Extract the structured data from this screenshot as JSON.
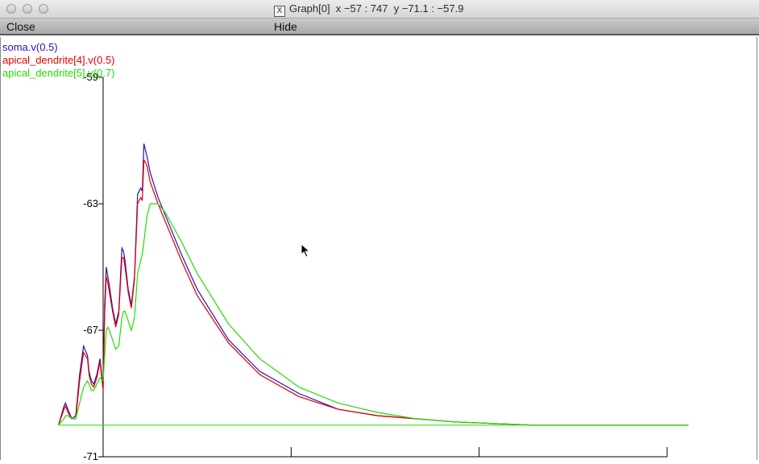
{
  "window": {
    "title": "Graph[0]  x −57 : 747  y −71.1 : −57.9",
    "x_badge": "X"
  },
  "menu": {
    "close_label": "Close",
    "hide_label": "Hide"
  },
  "legend": [
    {
      "label": "soma.v(0.5)",
      "color": "#2a0fb5"
    },
    {
      "label": "apical_dendrite[4].v(0.5)",
      "color": "#e00000"
    },
    {
      "label": "apical_dendrite[5].v(0.7)",
      "color": "#22dd00"
    }
  ],
  "chart_data": {
    "type": "line",
    "title": "",
    "xlabel": "",
    "ylabel": "",
    "xlim": [
      -57,
      747
    ],
    "ylim": [
      -71,
      -59
    ],
    "y_ticks": [
      -59,
      -63,
      -67,
      -71
    ],
    "y_tick_labels": [
      "-59",
      "-63",
      "-67",
      "-71"
    ],
    "x_ticks": [
      0,
      240,
      480,
      720
    ],
    "grid": false,
    "series": [
      {
        "name": "soma.v(0.5)",
        "color": "#2a0fb5",
        "x": [
          -57,
          -50,
          -48,
          -45,
          -40,
          -35,
          -30,
          -25,
          -20,
          -18,
          -15,
          -12,
          -8,
          -4,
          0,
          2,
          4,
          6,
          8,
          12,
          16,
          20,
          24,
          26,
          28,
          32,
          36,
          40,
          44,
          48,
          50,
          52,
          56,
          60,
          70,
          80,
          100,
          120,
          160,
          200,
          250,
          300,
          350,
          400,
          450,
          500,
          550,
          600,
          650,
          700,
          747
        ],
        "y": [
          -70.0,
          -69.4,
          -69.3,
          -69.5,
          -69.8,
          -69.7,
          -68.4,
          -67.5,
          -67.8,
          -68.3,
          -68.6,
          -68.7,
          -68.4,
          -67.9,
          -68.8,
          -66.2,
          -65.0,
          -65.3,
          -65.6,
          -66.3,
          -66.8,
          -66.4,
          -64.4,
          -64.5,
          -64.8,
          -65.7,
          -66.2,
          -65.3,
          -62.7,
          -62.5,
          -62.6,
          -61.1,
          -61.5,
          -62.0,
          -62.8,
          -63.4,
          -64.6,
          -65.7,
          -67.3,
          -68.3,
          -69.0,
          -69.5,
          -69.7,
          -69.8,
          -69.9,
          -69.95,
          -70.0,
          -70.0,
          -70.0,
          -70.0,
          -70.0
        ]
      },
      {
        "name": "apical_dendrite[4].v(0.5)",
        "color": "#e00000",
        "x": [
          -57,
          -50,
          -48,
          -45,
          -40,
          -35,
          -30,
          -25,
          -20,
          -18,
          -15,
          -12,
          -8,
          -4,
          0,
          2,
          4,
          6,
          8,
          12,
          16,
          20,
          24,
          26,
          28,
          32,
          36,
          40,
          44,
          48,
          50,
          52,
          56,
          60,
          70,
          80,
          100,
          120,
          160,
          200,
          250,
          300,
          350,
          400,
          450,
          500,
          550,
          600,
          650,
          700,
          747
        ],
        "y": [
          -70.0,
          -69.5,
          -69.4,
          -69.6,
          -69.8,
          -69.8,
          -68.6,
          -67.7,
          -67.9,
          -68.4,
          -68.7,
          -68.8,
          -68.5,
          -68.0,
          -68.9,
          -66.5,
          -65.3,
          -65.5,
          -65.8,
          -66.4,
          -66.9,
          -66.5,
          -64.7,
          -64.7,
          -65.0,
          -65.8,
          -66.3,
          -65.4,
          -63.0,
          -62.8,
          -62.9,
          -61.6,
          -61.8,
          -62.3,
          -63.0,
          -63.6,
          -64.8,
          -65.9,
          -67.4,
          -68.4,
          -69.1,
          -69.5,
          -69.7,
          -69.8,
          -69.9,
          -69.95,
          -70.0,
          -70.0,
          -70.0,
          -70.0,
          -70.0
        ]
      },
      {
        "name": "apical_dendrite[5].v(0.7)",
        "color": "#22dd00",
        "x": [
          -57,
          -50,
          -48,
          -45,
          -40,
          -35,
          -30,
          -25,
          -20,
          -18,
          -15,
          -12,
          -8,
          -4,
          0,
          2,
          4,
          6,
          8,
          12,
          16,
          20,
          24,
          26,
          28,
          32,
          36,
          40,
          44,
          48,
          50,
          52,
          56,
          60,
          70,
          80,
          100,
          120,
          160,
          200,
          250,
          300,
          350,
          400,
          450,
          500,
          550,
          600,
          650,
          700,
          747
        ],
        "y": [
          -70.0,
          -69.8,
          -69.7,
          -69.7,
          -69.8,
          -69.8,
          -69.3,
          -68.8,
          -68.6,
          -68.7,
          -68.9,
          -68.9,
          -68.7,
          -68.5,
          -68.6,
          -67.8,
          -67.0,
          -66.9,
          -67.0,
          -67.3,
          -67.6,
          -67.5,
          -66.6,
          -66.4,
          -66.4,
          -66.7,
          -67.0,
          -66.6,
          -65.2,
          -64.8,
          -64.6,
          -64.2,
          -63.4,
          -63.0,
          -63.0,
          -63.3,
          -64.2,
          -65.2,
          -66.8,
          -67.9,
          -68.8,
          -69.3,
          -69.6,
          -69.8,
          -69.9,
          -69.95,
          -70.0,
          -70.0,
          -70.0,
          -70.0,
          -70.0
        ]
      }
    ]
  }
}
